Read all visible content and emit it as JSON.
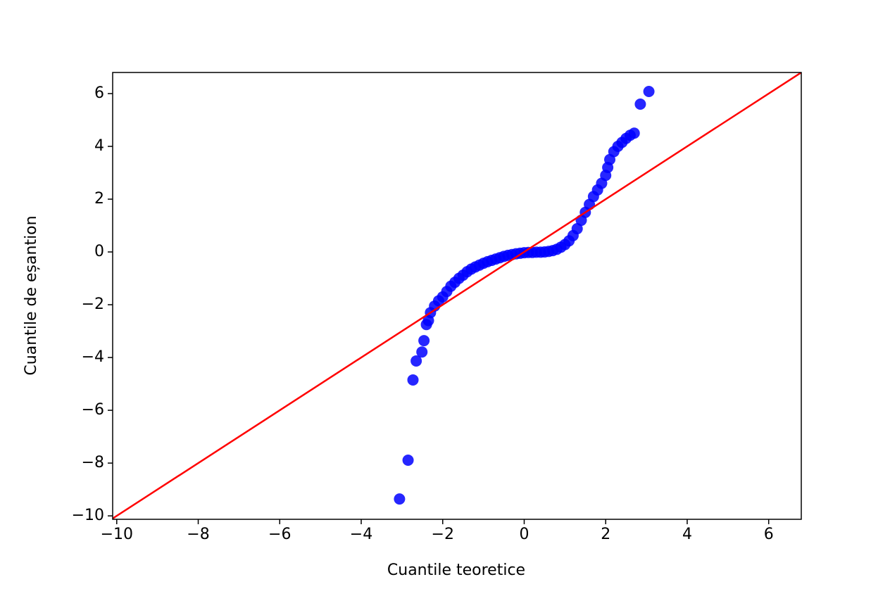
{
  "chart_data": {
    "type": "scatter",
    "x_label": "Cuantile teoretice",
    "y_label": "Cuantile de eșantion",
    "xlim": [
      -10.1,
      6.8
    ],
    "ylim": [
      -10.13,
      6.8
    ],
    "xticks": [
      {
        "value": -10,
        "label": "−10"
      },
      {
        "value": -8,
        "label": "−8"
      },
      {
        "value": -6,
        "label": "−6"
      },
      {
        "value": -4,
        "label": "−4"
      },
      {
        "value": -2,
        "label": "−2"
      },
      0,
      2,
      4,
      6
    ],
    "yticks": [
      {
        "value": -10,
        "label": "−10"
      },
      {
        "value": -8,
        "label": "−8"
      },
      {
        "value": -6,
        "label": "−6"
      },
      {
        "value": -4,
        "label": "−4"
      },
      {
        "value": -2,
        "label": "−2"
      },
      0,
      2,
      4,
      6
    ],
    "color": "#0000ff",
    "x": [
      -3.06,
      -2.85,
      -2.73,
      -2.65,
      -2.51,
      -2.46,
      -2.4,
      -2.35,
      -2.3,
      -2.2,
      -2.1,
      -2.0,
      -1.9,
      -1.8,
      -1.7,
      -1.6,
      -1.5,
      -1.4,
      -1.3,
      -1.2,
      -1.1,
      -1.0,
      -0.9,
      -0.8,
      -0.7,
      -0.6,
      -0.5,
      -0.4,
      -0.3,
      -0.2,
      -0.1,
      0,
      0.1,
      0.2,
      0.3,
      0.4,
      0.5,
      0.6,
      0.7,
      0.8,
      0.9,
      1.0,
      1.1,
      1.2,
      1.3,
      1.4,
      1.5,
      1.6,
      1.7,
      1.8,
      1.9,
      2.0,
      2.05,
      2.1,
      2.2,
      2.3,
      2.4,
      2.5,
      2.6,
      2.7,
      2.85,
      3.06
    ],
    "values": [
      -9.36,
      -7.89,
      -4.85,
      -4.13,
      -3.79,
      -3.36,
      -2.75,
      -2.6,
      -2.3,
      -2.05,
      -1.85,
      -1.7,
      -1.5,
      -1.3,
      -1.15,
      -1.0,
      -0.88,
      -0.75,
      -0.65,
      -0.57,
      -0.5,
      -0.43,
      -0.37,
      -0.32,
      -0.27,
      -0.22,
      -0.17,
      -0.13,
      -0.1,
      -0.07,
      -0.05,
      -0.03,
      -0.02,
      -0.02,
      -0.01,
      -0.01,
      0,
      0.02,
      0.05,
      0.1,
      0.18,
      0.28,
      0.42,
      0.62,
      0.88,
      1.2,
      1.5,
      1.8,
      2.1,
      2.35,
      2.6,
      2.9,
      3.2,
      3.5,
      3.8,
      4.0,
      4.15,
      4.3,
      4.42,
      4.5,
      5.6,
      6.08
    ],
    "reference_line": {
      "color": "#ff0000",
      "x": [
        -10.1,
        6.8
      ],
      "values": [
        -10.1,
        6.8
      ]
    }
  }
}
